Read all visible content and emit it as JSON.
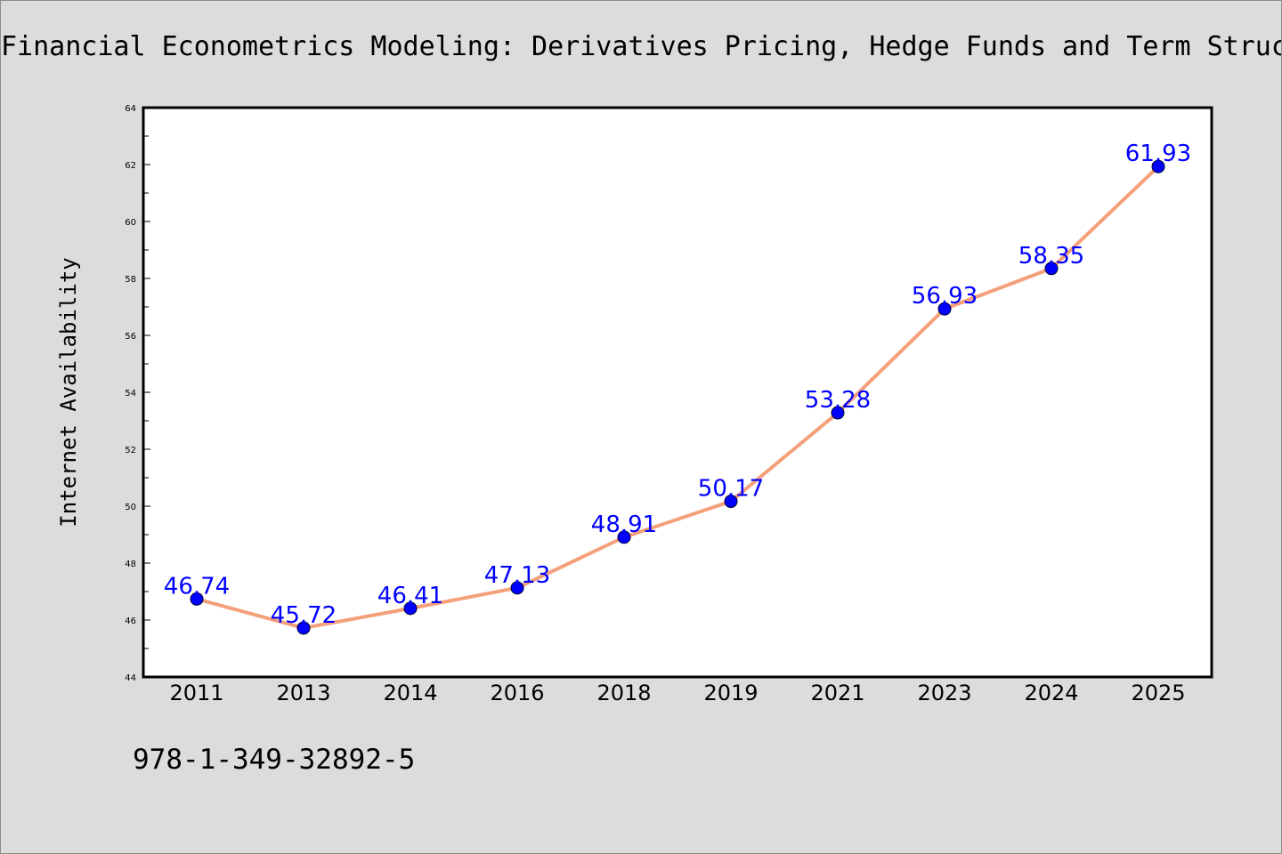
{
  "chart_data": {
    "type": "line",
    "title": "Financial Econometrics Modeling: Derivatives Pricing, Hedge Funds and Term Struc",
    "xlabel": "",
    "ylabel": "Internet Availability",
    "categories": [
      "2011",
      "2013",
      "2014",
      "2016",
      "2018",
      "2019",
      "2021",
      "2023",
      "2024",
      "2025"
    ],
    "series": [
      {
        "values": [
          46.74,
          45.72,
          46.41,
          47.13,
          48.91,
          50.17,
          53.28,
          56.93,
          58.35,
          61.93
        ],
        "line_color": "#f4a07a",
        "marker_color": "#0000ff",
        "label_color": "#0000ff"
      }
    ],
    "data_labels": [
      "46.74",
      "45.72",
      "46.41",
      "47.13",
      "48.91",
      "50.17",
      "53.28",
      "56.93",
      "58.35",
      "61.93"
    ],
    "ylim": [
      44,
      64
    ],
    "yticks": [
      "44",
      "46",
      "48",
      "50",
      "52",
      "54",
      "56",
      "58",
      "60",
      "62",
      "64"
    ],
    "grid": false,
    "legend": "none",
    "annotation": "978-1-349-32892-5"
  }
}
